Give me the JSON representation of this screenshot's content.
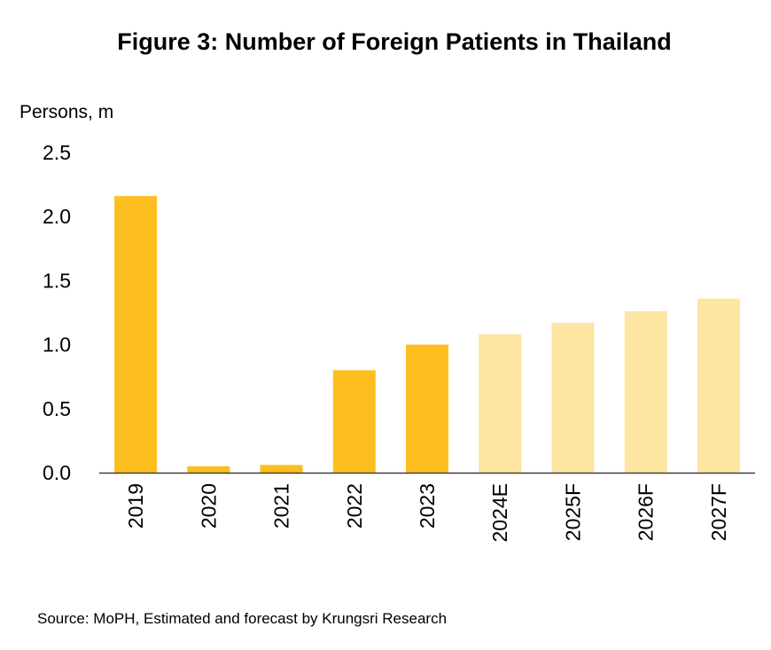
{
  "colors": {
    "actual": "#FDBE20",
    "forecast": "#FDE5A2",
    "axis": "#404040"
  },
  "chart_data": {
    "type": "bar",
    "title": "Figure 3: Number of Foreign Patients in Thailand",
    "ylabel": "Persons, m",
    "xlabel": "",
    "ylim": [
      0,
      2.5
    ],
    "yticks": [
      "0.0",
      "0.5",
      "1.0",
      "1.5",
      "2.0",
      "2.5"
    ],
    "grid": false,
    "categories": [
      "2019",
      "2020",
      "2021",
      "2022",
      "2023",
      "2024E",
      "2025F",
      "2026F",
      "2027F"
    ],
    "values": [
      2.16,
      0.05,
      0.06,
      0.8,
      1.0,
      1.08,
      1.17,
      1.26,
      1.36
    ],
    "bar_kind": [
      "actual",
      "actual",
      "actual",
      "actual",
      "actual",
      "forecast",
      "forecast",
      "forecast",
      "forecast"
    ]
  },
  "source": "Source: MoPH,  Estimated and forecast by Krungsri Research"
}
